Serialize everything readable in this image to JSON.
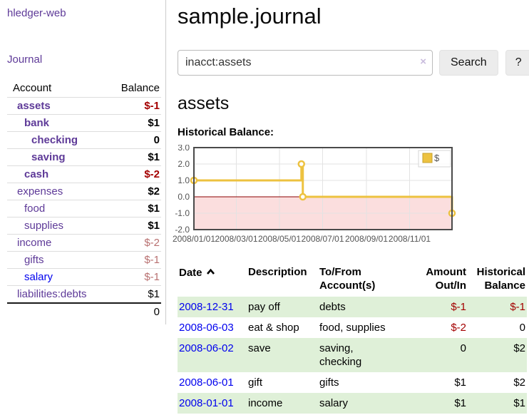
{
  "colors": {
    "accent_purple": "#5e3a98",
    "link_blue": "#0000ee",
    "negative_red": "#a40000",
    "negative_muted": "#b87070",
    "row_stripe_green": "#dff0d8",
    "series_gold": "#edc240"
  },
  "app": {
    "brand": "hledger-web"
  },
  "nav": {
    "journal_label": "Journal"
  },
  "sidebar": {
    "header": {
      "account": "Account",
      "balance": "Balance"
    },
    "accounts": [
      {
        "name": "assets",
        "balance": "$-1"
      },
      {
        "name": "bank",
        "balance": "$1"
      },
      {
        "name": "checking",
        "balance": "0"
      },
      {
        "name": "saving",
        "balance": "$1"
      },
      {
        "name": "cash",
        "balance": "$-2"
      },
      {
        "name": "expenses",
        "balance": "$2"
      },
      {
        "name": "food",
        "balance": "$1"
      },
      {
        "name": "supplies",
        "balance": "$1"
      },
      {
        "name": "income",
        "balance": "$-2"
      },
      {
        "name": "gifts",
        "balance": "$-1"
      },
      {
        "name": "salary",
        "balance": "$-1"
      },
      {
        "name": "liabilities:debts",
        "balance": "$1"
      }
    ],
    "total": "0"
  },
  "header": {
    "title": "sample.journal"
  },
  "search": {
    "query": "inacct:assets",
    "clear_icon": "×",
    "search_button": "Search",
    "help_button": "?"
  },
  "account_view": {
    "heading": "assets",
    "chart_title": "Historical Balance:"
  },
  "chart_data": {
    "type": "line",
    "step": true,
    "title": "Historical Balance",
    "legend_position": "top-right",
    "grid": true,
    "ylim": [
      -2,
      3
    ],
    "xlim_days": [
      0,
      365
    ],
    "zero_line_color": "#8b0000",
    "negative_region_color": "#fbdede",
    "series": [
      {
        "name": "$",
        "color": "#edc240",
        "points": [
          {
            "date": "2008-01-01",
            "day": 0,
            "value": 1
          },
          {
            "date": "2008-06-01",
            "day": 152,
            "value": 2
          },
          {
            "date": "2008-06-03",
            "day": 154,
            "value": 0
          },
          {
            "date": "2008-12-31",
            "day": 365,
            "value": -1
          }
        ]
      }
    ],
    "x_ticks": [
      {
        "day": 0,
        "label": "2008/01/01"
      },
      {
        "day": 60,
        "label": "2008/03/01"
      },
      {
        "day": 121,
        "label": "2008/05/01"
      },
      {
        "day": 182,
        "label": "2008/07/01"
      },
      {
        "day": 244,
        "label": "2008/09/01"
      },
      {
        "day": 305,
        "label": "2008/11/01"
      }
    ],
    "y_ticks": [
      {
        "value": 3,
        "label": "3.0"
      },
      {
        "value": 2,
        "label": "2.0"
      },
      {
        "value": 1,
        "label": "1.0"
      },
      {
        "value": 0,
        "label": "0.0"
      },
      {
        "value": -1,
        "label": "-1.0"
      },
      {
        "value": -2,
        "label": "-2.0"
      }
    ]
  },
  "register": {
    "columns": {
      "date": "Date",
      "description": "Description",
      "accounts": "To/From\nAccount(s)",
      "amount": "Amount\nOut/In",
      "balance": "Historical\nBalance"
    },
    "rows": [
      {
        "date": "2008-12-31",
        "description": "pay off",
        "accounts": "debts",
        "amount": "$-1",
        "balance": "$-1"
      },
      {
        "date": "2008-06-03",
        "description": "eat & shop",
        "accounts": "food, supplies",
        "amount": "$-2",
        "balance": "0"
      },
      {
        "date": "2008-06-02",
        "description": "save",
        "accounts": "saving,\nchecking",
        "amount": "0",
        "balance": "$2"
      },
      {
        "date": "2008-06-01",
        "description": "gift",
        "accounts": "gifts",
        "amount": "$1",
        "balance": "$2"
      },
      {
        "date": "2008-01-01",
        "description": "income",
        "accounts": "salary",
        "amount": "$1",
        "balance": "$1"
      }
    ]
  }
}
